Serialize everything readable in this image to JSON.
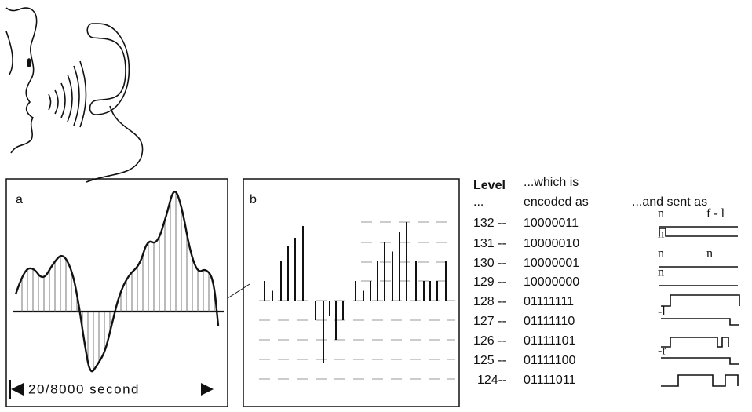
{
  "panel_a": {
    "label": "a",
    "duration": "20/8000 second"
  },
  "panel_b": {
    "label": "b"
  },
  "table": {
    "level_header": "Level",
    "level_header_sub": "...",
    "code_header": "...which is",
    "code_header_sub": "encoded as",
    "signal_header": "...and sent as",
    "rows": [
      {
        "level": "132 --",
        "code": "10000011",
        "signal": [
          "n",
          "f - l"
        ]
      },
      {
        "level": "131 --",
        "code": "10000010",
        "signal": [
          "n"
        ]
      },
      {
        "level": "130 --",
        "code": "10000001",
        "signal": [
          "n",
          "n"
        ]
      },
      {
        "level": "129 --",
        "code": "10000000",
        "signal": [
          "n"
        ]
      },
      {
        "level": "128 --",
        "code": "01111111",
        "signal": []
      },
      {
        "level": "127 --",
        "code": "01111110",
        "signal": [
          "-l"
        ]
      },
      {
        "level": "126 --",
        "code": "01111101",
        "signal": []
      },
      {
        "level": "125 --",
        "code": "01111100",
        "signal": [
          "-r"
        ]
      },
      {
        "level": "124--",
        "code": "01111011",
        "signal": []
      }
    ]
  }
}
